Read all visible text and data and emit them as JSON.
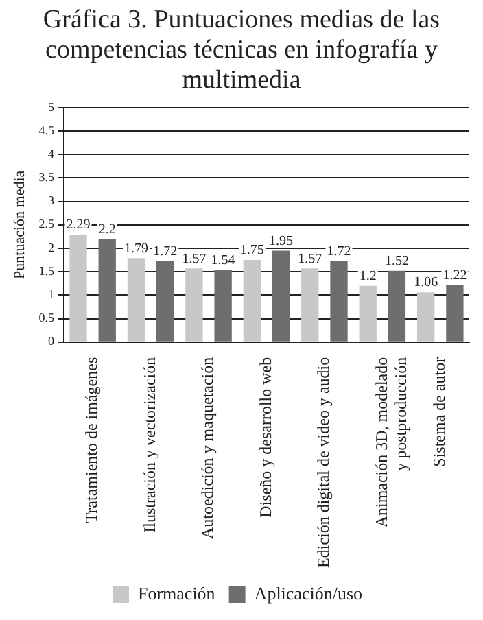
{
  "chart_data": {
    "type": "bar",
    "title": "Gráfica 3. Puntuaciones medias de las competencias técnicas en infografía y multimedia",
    "ylabel": "Puntuación media",
    "categories": [
      "Tratamiento de imágenes",
      "Ilustración y vectorización",
      "Autoedición y maquetación",
      "Diseño y desarrollo web",
      "Edición digital de video y audio",
      "Animación 3D, modelado y postproducción",
      "Sistema de autor"
    ],
    "series": [
      {
        "name": "Formación",
        "color": "#c8c8c8",
        "values": [
          2.29,
          1.79,
          1.57,
          1.75,
          1.57,
          1.2,
          1.06
        ]
      },
      {
        "name": "Aplicación/uso",
        "color": "#6e6e6e",
        "values": [
          2.2,
          1.72,
          1.54,
          1.95,
          1.72,
          1.52,
          1.22
        ]
      }
    ],
    "ylim": [
      0,
      5
    ],
    "yticks": [
      0,
      0.5,
      1,
      1.5,
      2,
      2.5,
      3,
      3.5,
      4,
      4.5,
      5
    ],
    "grid": "y",
    "legend": "bottom",
    "data_labels": true
  }
}
